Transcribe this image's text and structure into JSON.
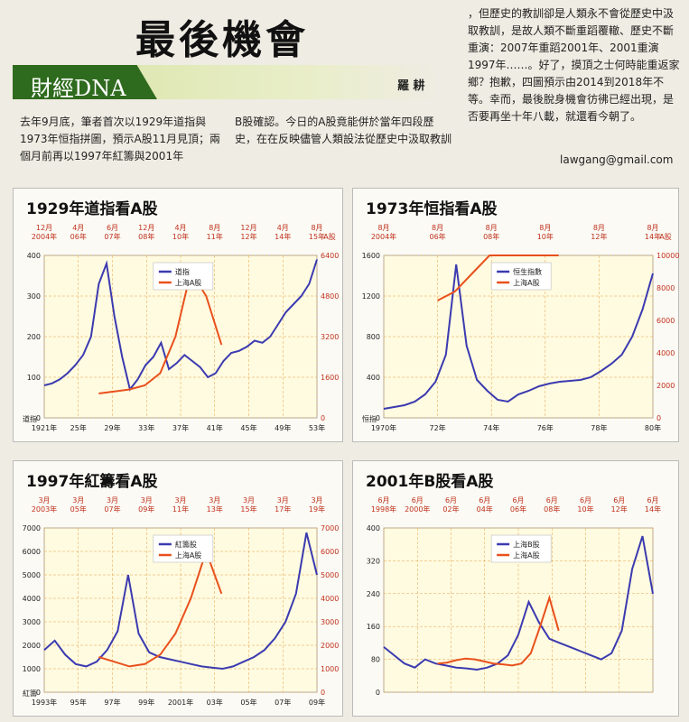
{
  "article": {
    "headline": "最後機會",
    "column": "財經DNA",
    "author": "羅 耕",
    "col1": "去年9月底，筆者首次以1929年道指與1973年恒指拼圖，預示A股11月見頂；兩個月前再以1997年紅籌與2001年",
    "col2": "B股確認。今日的A股竟能併於當年四段歷史，在在反映儘管人類設法從歷史中汲取教訓",
    "col3": "，但歷史的教訓卻是人類永不會從歷史中汲取教訓，是故人類不斷重蹈覆轍、歷史不斷重演：2007年重蹈2001年、2001重演1997年……。好了，摸頂之士何時能重返家鄉？抱歉，四圖預示由2014到2018年不等。幸而，最後脫身機會彷彿已經出現，是否要再坐十年八載，就還看今朝了。",
    "email": "lawgang@gmail.com"
  },
  "chart_data": [
    {
      "type": "line",
      "title": "1929年道指看A股",
      "top_ticks": [
        "12月\n2004年",
        "4月\n06年",
        "6月\n07年",
        "12月\n08年",
        "4月\n10年",
        "8月\n11年",
        "12月\n12年",
        "4月\n14年",
        "8月\n15年"
      ],
      "right_unit": "A股",
      "bottom_ticks": [
        "1921年",
        "25年",
        "29年",
        "33年",
        "37年",
        "41年",
        "45年",
        "49年",
        "53年"
      ],
      "left_label": "道指",
      "left_ticks": [
        "0",
        "100",
        "200",
        "300",
        "400"
      ],
      "right_ticks": [
        "0",
        "1600",
        "3200",
        "4800",
        "6400"
      ],
      "series": [
        {
          "name": "道指",
          "color": "#3b3ab0",
          "values": [
            80,
            85,
            95,
            110,
            130,
            155,
            200,
            330,
            380,
            250,
            150,
            70,
            95,
            130,
            150,
            185,
            120,
            135,
            155,
            140,
            125,
            100,
            110,
            140,
            160,
            165,
            175,
            190,
            185,
            200,
            230,
            260,
            280,
            300,
            330,
            390
          ]
        },
        {
          "name": "上海A股",
          "color": "#e8501c",
          "values": [
            60,
            65,
            70,
            80,
            110,
            200,
            360,
            300,
            180
          ]
        }
      ],
      "ylim": [
        0,
        400
      ]
    },
    {
      "type": "line",
      "title": "1973年恒指看A股",
      "top_ticks": [
        "8月\n2004年",
        "8月\n06年",
        "8月\n08年",
        "8月\n10年",
        "8月\n12年",
        "8月\n14年"
      ],
      "right_unit": "A股",
      "bottom_ticks": [
        "1970年",
        "72年",
        "74年",
        "76年",
        "78年",
        "80年"
      ],
      "left_label": "恒指",
      "left_ticks": [
        "0",
        "400",
        "800",
        "1200",
        "1600"
      ],
      "right_ticks": [
        "0",
        "2000",
        "4000",
        "6000",
        "8000",
        "10000"
      ],
      "series": [
        {
          "name": "恒生指數",
          "color": "#3b3ab0",
          "values": [
            100,
            120,
            140,
            180,
            260,
            400,
            700,
            1700,
            800,
            420,
            300,
            200,
            180,
            260,
            300,
            350,
            380,
            400,
            410,
            420,
            450,
            520,
            600,
            700,
            900,
            1200,
            1600
          ]
        },
        {
          "name": "上海A股",
          "color": "#e8501c",
          "values": [
            1300,
            1400,
            1600,
            2200,
            3500,
            5800,
            4000,
            2200
          ]
        }
      ],
      "ylim": [
        0,
        1800
      ]
    },
    {
      "type": "line",
      "title": "1997年紅籌看A股",
      "top_ticks": [
        "3月\n2003年",
        "3月\n05年",
        "3月\n07年",
        "3月\n09年",
        "3月\n11年",
        "3月\n13年",
        "3月\n15年",
        "3月\n17年",
        "3月\n19年"
      ],
      "right_unit": "",
      "bottom_ticks": [
        "1993年",
        "95年",
        "97年",
        "99年",
        "2001年",
        "03年",
        "05年",
        "07年",
        "09年"
      ],
      "left_label": "紅籌",
      "left_ticks": [
        "0",
        "1000",
        "2000",
        "3000",
        "4000",
        "5000",
        "6000",
        "7000"
      ],
      "right_ticks": [
        "0",
        "1000",
        "2000",
        "3000",
        "4000",
        "5000",
        "6000",
        "7000"
      ],
      "series": [
        {
          "name": "紅籌股",
          "color": "#3b3ab0",
          "values": [
            1800,
            2200,
            1600,
            1200,
            1100,
            1300,
            1800,
            2600,
            5000,
            2500,
            1700,
            1500,
            1400,
            1300,
            1200,
            1100,
            1050,
            1000,
            1100,
            1300,
            1500,
            1800,
            2300,
            3000,
            4200,
            6800,
            5000
          ]
        },
        {
          "name": "上海A股",
          "color": "#e8501c",
          "values": [
            1500,
            1300,
            1100,
            1200,
            1600,
            2500,
            4000,
            6000,
            4200
          ]
        }
      ],
      "ylim": [
        0,
        7000
      ]
    },
    {
      "type": "line",
      "title": "2001年B股看A股",
      "top_ticks": [
        "6月\n1998年",
        "6月\n2000年",
        "6月\n02年",
        "6月\n04年",
        "6月\n06年",
        "6月\n08年",
        "6月\n10年",
        "6月\n12年",
        "6月\n14年"
      ],
      "right_unit": "",
      "bottom_ticks": [],
      "left_label": "",
      "left_ticks": [
        "0",
        "80",
        "160",
        "240",
        "320",
        "400"
      ],
      "right_ticks": [],
      "series": [
        {
          "name": "上海B股",
          "color": "#3b3ab0",
          "values": [
            110,
            90,
            70,
            60,
            80,
            70,
            65,
            60,
            58,
            55,
            60,
            70,
            90,
            140,
            220,
            170,
            130,
            120,
            110,
            100,
            90,
            80,
            95,
            150,
            300,
            380,
            240
          ]
        },
        {
          "name": "上海A股",
          "color": "#e8501c",
          "values": [
            70,
            72,
            78,
            82,
            80,
            75,
            70,
            68,
            65,
            70,
            95,
            160,
            230,
            150
          ]
        }
      ],
      "ylim": [
        0,
        400
      ]
    }
  ]
}
